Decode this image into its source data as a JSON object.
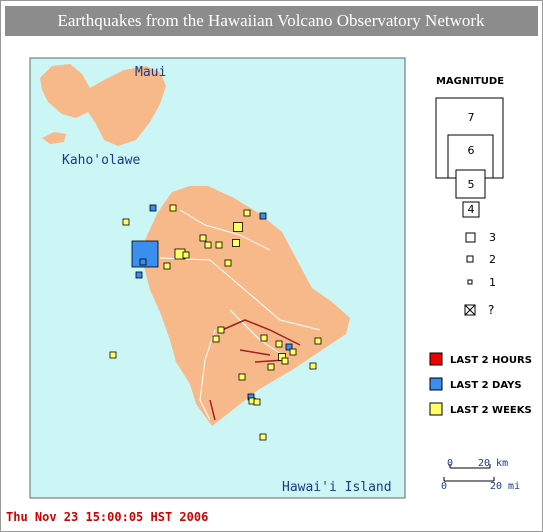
{
  "title": "Earthquakes from the Hawaiian Volcano Observatory Network",
  "map": {
    "labels": [
      "Maui",
      "Kaho'olawe",
      "Hawai'i Island"
    ]
  },
  "legend": {
    "heading": "MAGNITUDE",
    "magnitudes": [
      7,
      6,
      5,
      4,
      3,
      2,
      1,
      "?"
    ],
    "times": [
      "LAST 2 HOURS",
      "LAST 2 DAYS",
      "LAST 2 WEEKS"
    ],
    "scale": [
      "0",
      "20 km",
      "0",
      "20 mi"
    ]
  },
  "timestamp": "Thu Nov 23 15:00:05 HST 2006"
}
